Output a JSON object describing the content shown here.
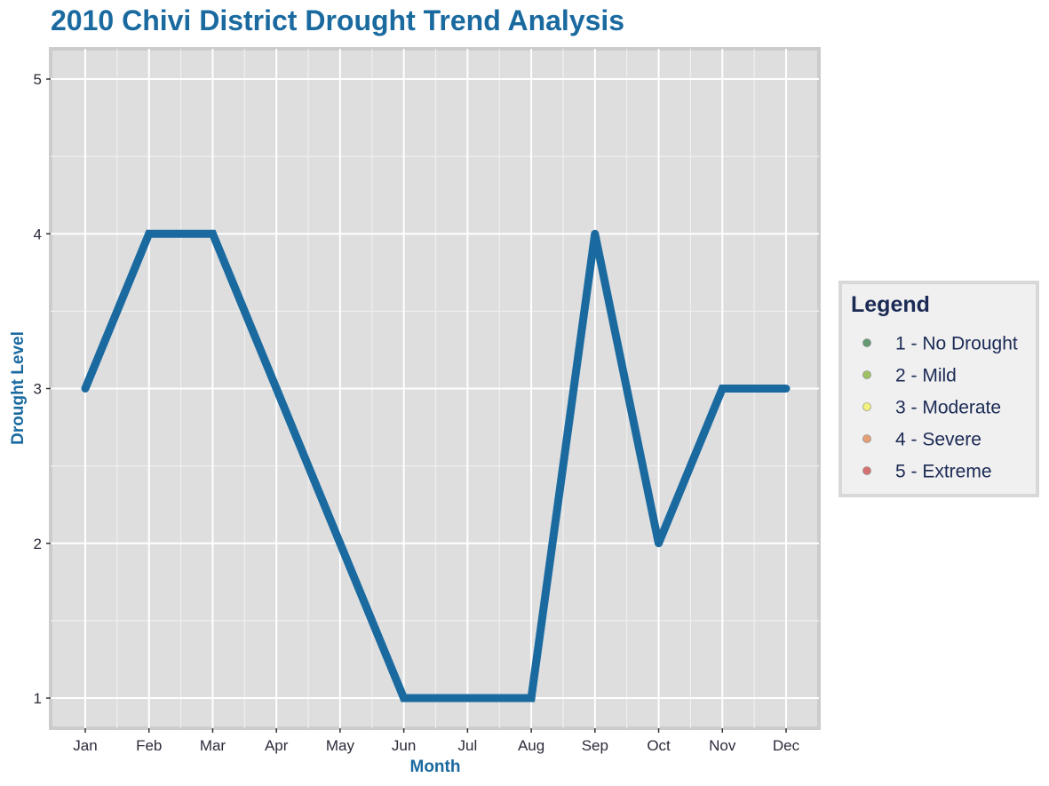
{
  "chart_data": {
    "type": "line",
    "title": "2010 Chivi District Drought Trend Analysis",
    "xlabel": "Month",
    "ylabel": "Drought Level",
    "categories": [
      "Jan",
      "Feb",
      "Mar",
      "Apr",
      "May",
      "Jun",
      "Jul",
      "Aug",
      "Sep",
      "Oct",
      "Nov",
      "Dec"
    ],
    "values": [
      3,
      4,
      4,
      3,
      2,
      1,
      1,
      1,
      4,
      2,
      3,
      3
    ],
    "ylim": [
      0.83,
      5.17
    ],
    "y_ticks": [
      1,
      2,
      3,
      4,
      5
    ],
    "y_tick_labels": [
      "1",
      "2",
      "3",
      "4",
      "5"
    ],
    "grid": true,
    "line_color": "#1a6aa0",
    "panel_background": "#dedede",
    "legend": {
      "title": "Legend",
      "placement": "right",
      "items": [
        {
          "label": "1 - No Drought",
          "color": "#4c8c5c"
        },
        {
          "label": "2 - Mild",
          "color": "#92b94a"
        },
        {
          "label": "3 - Moderate",
          "color": "#f2f06a"
        },
        {
          "label": "4 - Severe",
          "color": "#e39060"
        },
        {
          "label": "5 - Extreme",
          "color": "#d05a5a"
        }
      ]
    }
  }
}
